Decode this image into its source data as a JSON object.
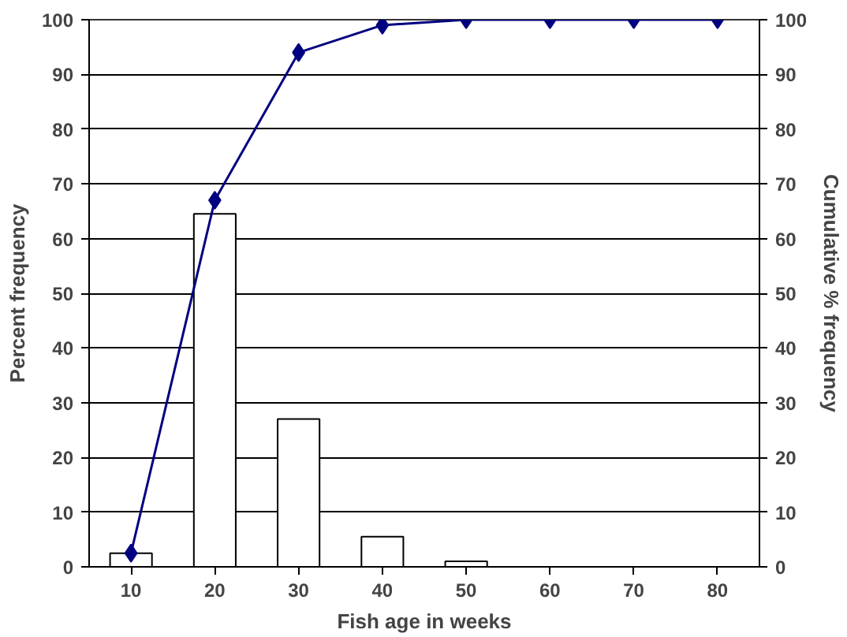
{
  "chart_data": {
    "type": "bar",
    "xlabel": "Fish age in weeks",
    "ylabel": "Percent frequency",
    "y2label": "Cumulative % frequency",
    "categories": [
      "10",
      "20",
      "30",
      "40",
      "50",
      "60",
      "70",
      "80"
    ],
    "series": [
      {
        "color": "#ffffff",
        "values": [
          2.5,
          64.5,
          27,
          5.5,
          1,
          0,
          0,
          0
        ]
      },
      {
        "type": "line",
        "axis": "y2",
        "color": "#000080",
        "marker": "diamond",
        "values": [
          2.5,
          67,
          94,
          99,
          100,
          100,
          100,
          100
        ]
      }
    ],
    "ylim": [
      0,
      100
    ],
    "yticks": [
      0,
      10,
      20,
      30,
      40,
      50,
      60,
      70,
      80,
      90,
      100
    ],
    "y2lim": [
      0,
      100
    ],
    "y2ticks": [
      0,
      10,
      20,
      30,
      40,
      50,
      60,
      70,
      80,
      90,
      100
    ],
    "grid": "y"
  }
}
